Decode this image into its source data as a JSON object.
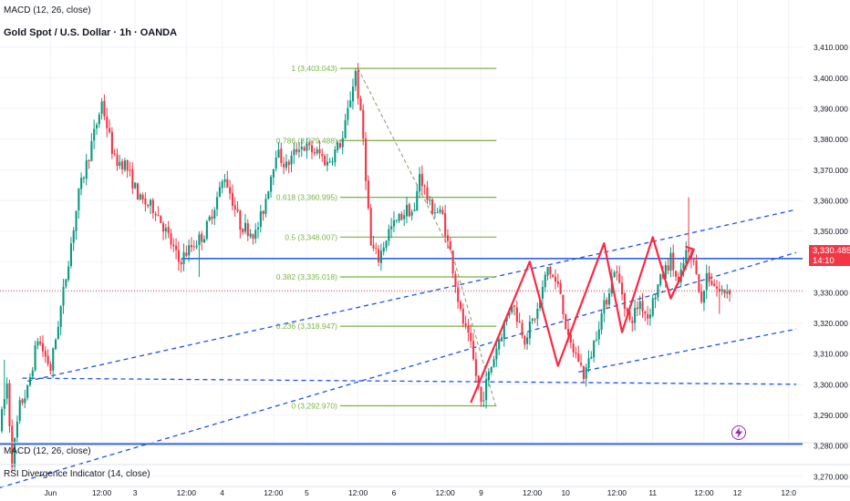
{
  "header": {
    "top_indicator": "MACD (12, 26, close)",
    "symbol_title": "Gold Spot / U.S. Dollar · 1h · OANDA"
  },
  "bottom_panes": {
    "macd": "MACD (12, 26, close)",
    "rsi": "RSI Divergence Indicator (14, close)"
  },
  "current_price": {
    "value": "3,330.485",
    "countdown": "14:10",
    "color": "#f23645"
  },
  "colors": {
    "up": "#089981",
    "down": "#f23645",
    "trend": "#1e53e5",
    "fib": "#7cb342",
    "wave": "#ff2740",
    "grid": "#f0f3fa",
    "alert": "#9c27b0"
  },
  "icons": {
    "alert": "lightning-icon"
  },
  "chart_data": {
    "type": "candlestick",
    "title": "Gold Spot / U.S. Dollar · 1h · OANDA",
    "y_axis": {
      "position": "right",
      "ticks": [
        3260,
        3270,
        3280,
        3290,
        3300,
        3310,
        3320,
        3330,
        3340,
        3350,
        3360,
        3370,
        3380,
        3390,
        3400,
        3410
      ],
      "tick_labels": [
        "3,260.000",
        "3,270.000",
        "3,280.000",
        "3,290.000",
        "3,300.000",
        "3,310.000",
        "3,320.000",
        "3,330.000",
        "3,340.000",
        "3,350.000",
        "3,360.000",
        "3,370.000",
        "3,380.000",
        "3,390.000",
        "3,400.000",
        "3,410.000"
      ],
      "range": [
        3255.5,
        3412
      ]
    },
    "x_axis": {
      "tick_labels": [
        "12:00",
        "Jun",
        "12:00",
        "3",
        "12:00",
        "4",
        "12:00",
        "5",
        "12:00",
        "6",
        "12:00",
        "9",
        "12:00",
        "10",
        "12:00",
        "11",
        "12:00",
        "12",
        "12:0"
      ],
      "tick_positions": [
        -5,
        19,
        39,
        52,
        72,
        86,
        106,
        119,
        139,
        153,
        173,
        187,
        207,
        220,
        240,
        254,
        274,
        287,
        307
      ]
    },
    "grid": true,
    "legend": "none",
    "waypoints": [
      [
        0,
        3285
      ],
      [
        3,
        3300
      ],
      [
        5,
        3275
      ],
      [
        8,
        3293
      ],
      [
        11,
        3298
      ],
      [
        15,
        3315
      ],
      [
        20,
        3305
      ],
      [
        25,
        3330
      ],
      [
        31,
        3362
      ],
      [
        38,
        3385
      ],
      [
        40,
        3392
      ],
      [
        45,
        3373
      ],
      [
        49,
        3372
      ],
      [
        55,
        3360
      ],
      [
        61,
        3357
      ],
      [
        66,
        3348
      ],
      [
        70,
        3340
      ],
      [
        75,
        3345
      ],
      [
        80,
        3349
      ],
      [
        88,
        3368
      ],
      [
        94,
        3352
      ],
      [
        100,
        3349
      ],
      [
        103,
        3357
      ],
      [
        108,
        3376
      ],
      [
        112,
        3371
      ],
      [
        117,
        3378
      ],
      [
        120,
        3377
      ],
      [
        125,
        3375
      ],
      [
        128,
        3372
      ],
      [
        134,
        3380
      ],
      [
        138,
        3398
      ],
      [
        139,
        3402
      ],
      [
        142,
        3380
      ],
      [
        145,
        3345
      ],
      [
        148,
        3341
      ],
      [
        152,
        3350
      ],
      [
        159,
        3357
      ],
      [
        162,
        3356
      ],
      [
        164,
        3369
      ],
      [
        168,
        3358
      ],
      [
        173,
        3355
      ],
      [
        175,
        3346
      ],
      [
        176,
        3343
      ],
      [
        180,
        3323
      ],
      [
        184,
        3312
      ],
      [
        188,
        3294
      ],
      [
        194,
        3312
      ],
      [
        200,
        3327
      ],
      [
        205,
        3315
      ],
      [
        210,
        3324
      ],
      [
        214,
        3338
      ],
      [
        219,
        3330
      ],
      [
        222,
        3314
      ],
      [
        226,
        3308
      ],
      [
        228,
        3303
      ],
      [
        230,
        3307
      ],
      [
        234,
        3320
      ],
      [
        237,
        3328
      ],
      [
        240,
        3338
      ],
      [
        243,
        3330
      ],
      [
        246,
        3320
      ],
      [
        250,
        3327
      ],
      [
        253,
        3322
      ],
      [
        257,
        3332
      ],
      [
        262,
        3341
      ],
      [
        265,
        3332
      ],
      [
        268,
        3343
      ],
      [
        272,
        3338
      ],
      [
        274,
        3326
      ],
      [
        276,
        3336
      ],
      [
        281,
        3330
      ],
      [
        285,
        3331
      ]
    ],
    "ohlc": [],
    "levels": [
      {
        "type": "horizontal",
        "name": "resistance",
        "price": 3341.0,
        "x_start": 70,
        "x_end": 310
      },
      {
        "type": "horizontal",
        "name": "support-low",
        "price": 3280.5,
        "x_start": -10,
        "x_end": 310
      },
      {
        "type": "dashed",
        "name": "support-dashed",
        "points": [
          [
            8,
            3302
          ],
          [
            310,
            3300
          ]
        ]
      },
      {
        "type": "dashed",
        "name": "long-trend",
        "points": [
          [
            -10,
            3264
          ],
          [
            310,
            3343
          ]
        ]
      },
      {
        "type": "dashed",
        "name": "channel-upper",
        "points": [
          [
            10,
            3301
          ],
          [
            310,
            3357
          ]
        ]
      },
      {
        "type": "dashed",
        "name": "channel-lower",
        "points": [
          [
            225,
            3304
          ],
          [
            310,
            3318
          ]
        ]
      }
    ],
    "fibonacci": {
      "x_start": 132,
      "x_end": 193,
      "levels": [
        {
          "ratio": "1",
          "price": 3403.043,
          "label": "1 (3,403.043)"
        },
        {
          "ratio": "0.786",
          "price": 3379.488,
          "label": "0.786 (3,379.488)"
        },
        {
          "ratio": "0.618",
          "price": 3360.995,
          "label": "0.618 (3,360.995)"
        },
        {
          "ratio": "0.5",
          "price": 3348.007,
          "label": "0.5 (3,348.007)"
        },
        {
          "ratio": "0.382",
          "price": 3335.018,
          "label": "0.382 (3,335.018)"
        },
        {
          "ratio": "0.236",
          "price": 3318.947,
          "label": "0.236 (3,318.947)"
        },
        {
          "ratio": "0",
          "price": 3292.97,
          "label": "0 (3,292.970)"
        }
      ]
    },
    "zigzag": [
      [
        183,
        3294
      ],
      [
        206,
        3340
      ],
      [
        217,
        3306
      ],
      [
        235,
        3346
      ],
      [
        242,
        3317
      ],
      [
        254,
        3348
      ],
      [
        261,
        3328
      ],
      [
        270,
        3344
      ]
    ],
    "arrow": [
      [
        261,
        3328
      ],
      [
        270,
        3344
      ]
    ],
    "last_price": 3330.485
  }
}
